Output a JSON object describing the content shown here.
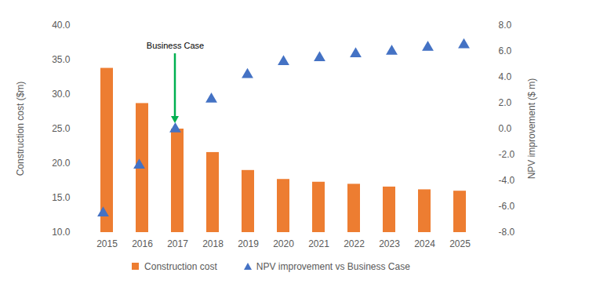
{
  "chart_data": {
    "type": "bar",
    "categories": [
      "2015",
      "2016",
      "2017",
      "2018",
      "2019",
      "2020",
      "2021",
      "2022",
      "2023",
      "2024",
      "2025"
    ],
    "series": [
      {
        "name": "Construction cost",
        "type": "bar",
        "color": "#ed7d31",
        "values": [
          33.8,
          28.7,
          25.0,
          21.6,
          19.0,
          17.7,
          17.3,
          17.0,
          16.6,
          16.2,
          16.0
        ]
      },
      {
        "name": "NPV improvement vs Business Case",
        "type": "scatter",
        "marker": "triangle",
        "axis": "y2",
        "color": "#4472c4",
        "values": [
          -6.5,
          -2.8,
          0.0,
          2.3,
          4.2,
          5.2,
          5.5,
          5.8,
          6.0,
          6.3,
          6.5
        ]
      }
    ],
    "y_label": "Construction cost ($m)",
    "y2_label": "NPV improvement ($ m)",
    "ylim": [
      10,
      40
    ],
    "yticks": [
      {
        "value": 10,
        "label": "10.0"
      },
      {
        "value": 15,
        "label": "15.0"
      },
      {
        "value": 20,
        "label": "20.0"
      },
      {
        "value": 25,
        "label": "25.0"
      },
      {
        "value": 30,
        "label": "30.0"
      },
      {
        "value": 35,
        "label": "35.0"
      },
      {
        "value": 40,
        "label": "40.0"
      }
    ],
    "y2lim": [
      -8,
      8
    ],
    "y2ticks": [
      {
        "value": -8,
        "label": "-8.0"
      },
      {
        "value": -6,
        "label": "-6.0"
      },
      {
        "value": -4,
        "label": "-4.0"
      },
      {
        "value": -2,
        "label": "-2.0"
      },
      {
        "value": 0,
        "label": "0.0"
      },
      {
        "value": 2,
        "label": "2.0"
      },
      {
        "value": 4,
        "label": "4.0"
      },
      {
        "value": 6,
        "label": "6.0"
      },
      {
        "value": 8,
        "label": "8.0"
      }
    ],
    "annotations": [
      {
        "text": "Business Case",
        "x": "2017",
        "color": "#00b050"
      }
    ],
    "legend": "bottom",
    "grid": false
  }
}
